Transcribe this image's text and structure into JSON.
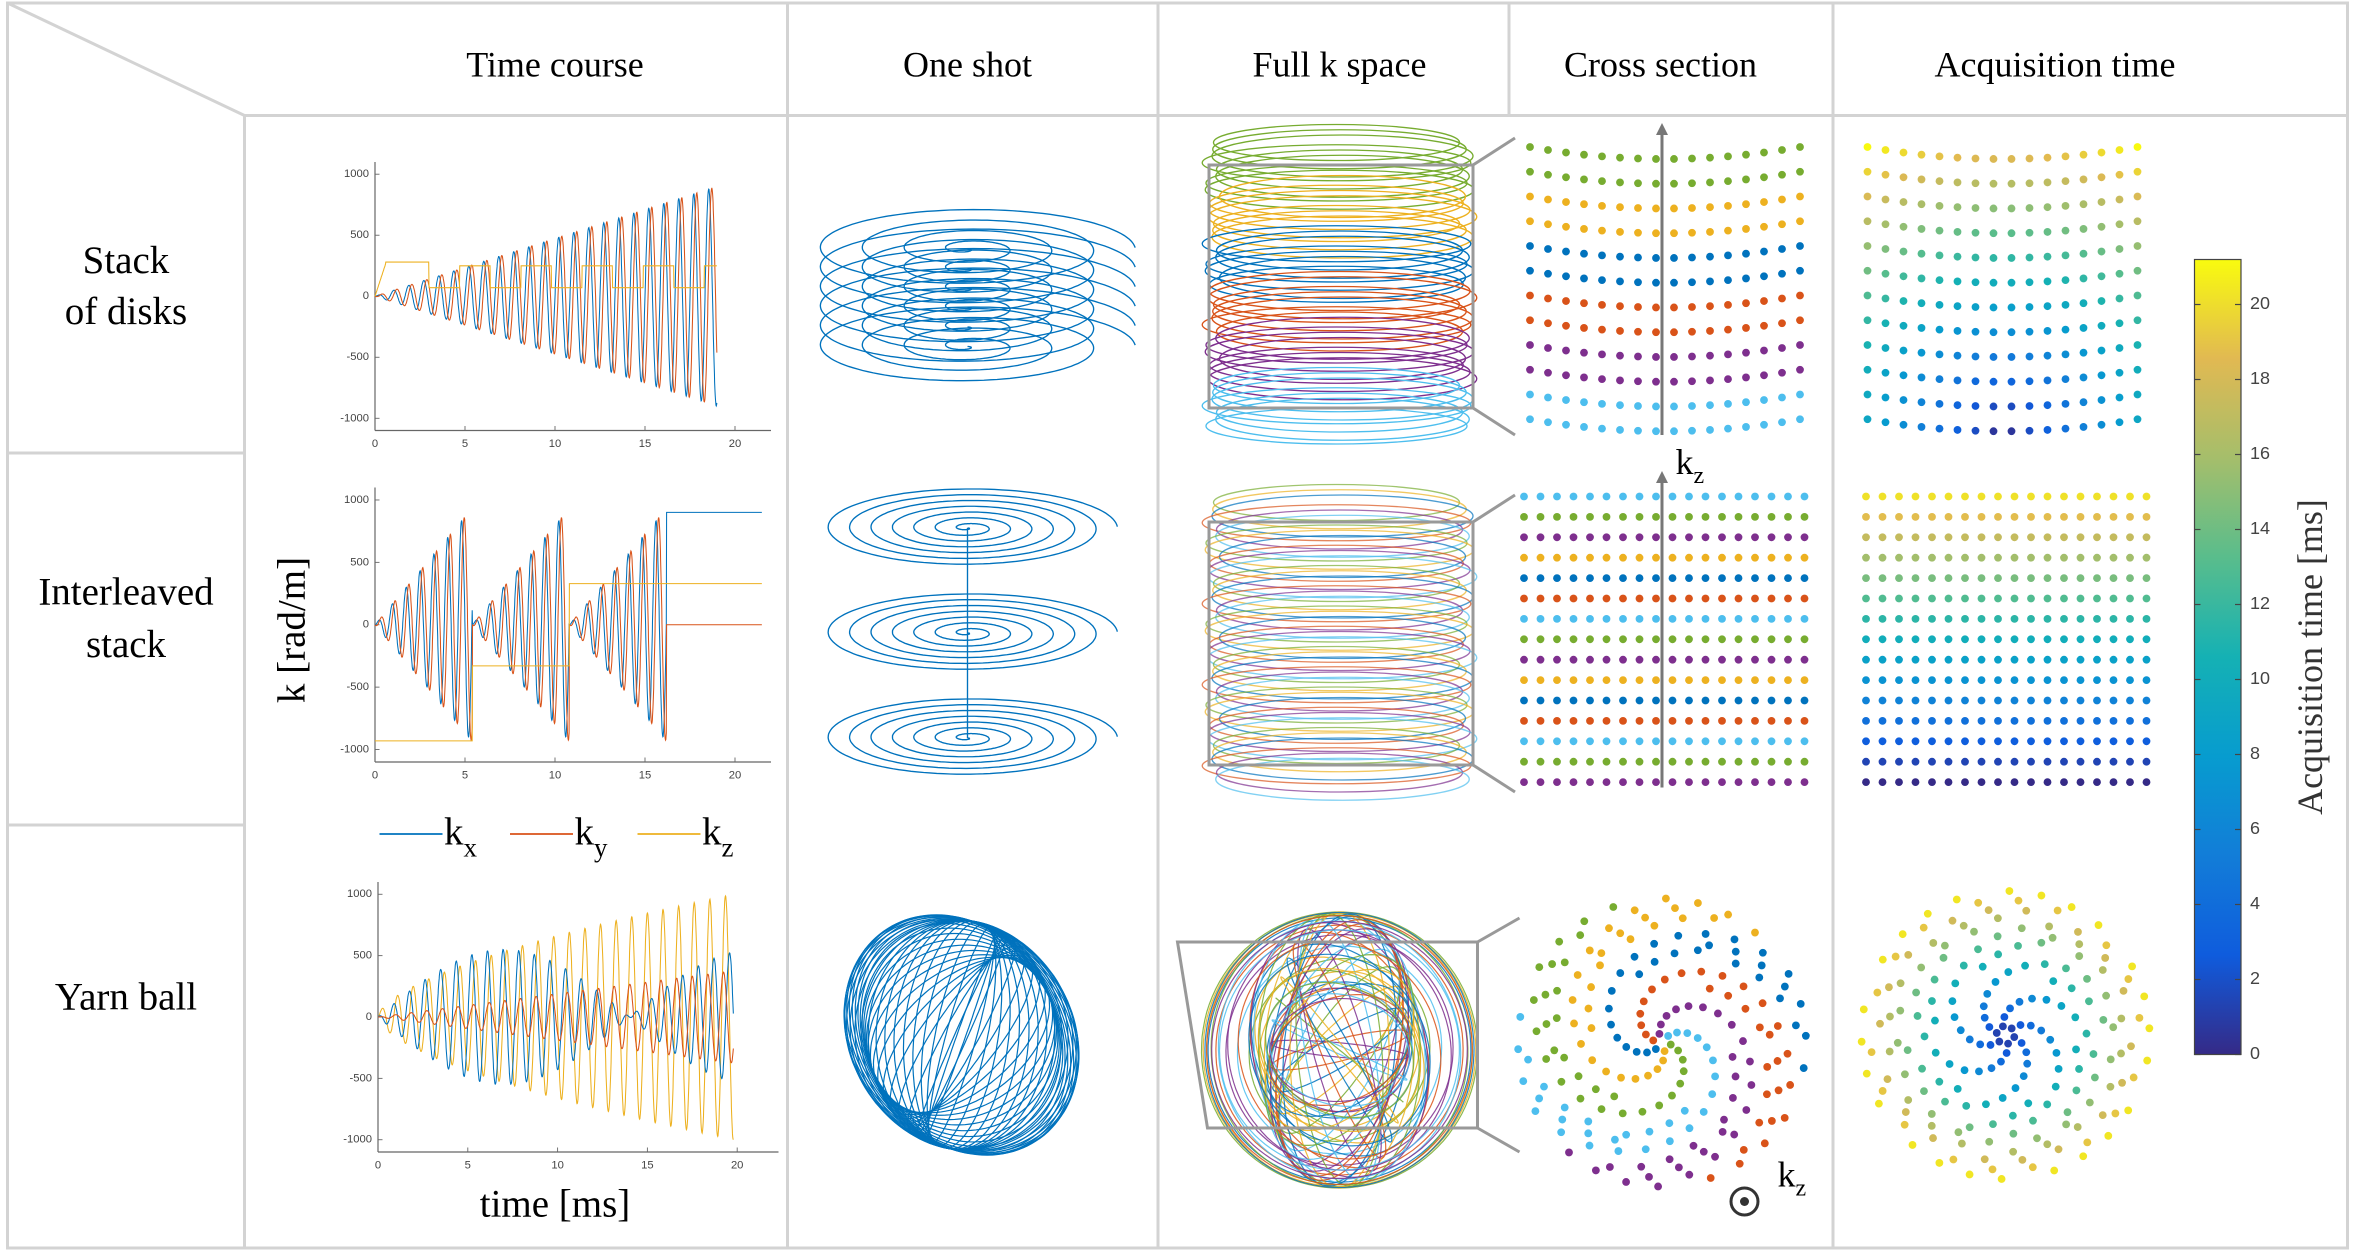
{
  "header": {
    "columns": [
      "Time course",
      "One shot",
      "Full k space",
      "Cross section",
      "Acquisition time"
    ]
  },
  "rows": [
    {
      "label": [
        "Stack",
        "of disks"
      ]
    },
    {
      "label": [
        "Interleaved",
        "stack"
      ]
    },
    {
      "label": [
        "Yarn ball"
      ]
    }
  ],
  "time_course": {
    "ylabel": "k  [rad/m]",
    "xlabel": "time [ms]",
    "legend": [
      {
        "name": "k",
        "sub": "x",
        "color": "#0072bd"
      },
      {
        "name": "k",
        "sub": "y",
        "color": "#d95319"
      },
      {
        "name": "k",
        "sub": "z",
        "color": "#edb120"
      }
    ],
    "charts": [
      {
        "xlim": [
          0,
          22
        ],
        "ylim": [
          -1100,
          1100
        ],
        "xticks": [
          0,
          5,
          10,
          15,
          20
        ],
        "yticks": [
          -1000,
          -500,
          0,
          500,
          1000
        ]
      },
      {
        "xlim": [
          0,
          22
        ],
        "ylim": [
          -1100,
          1100
        ],
        "xticks": [
          0,
          5,
          10,
          15,
          20
        ],
        "yticks": [
          -1000,
          -500,
          0,
          500,
          1000
        ]
      },
      {
        "xlim": [
          0,
          22.3
        ],
        "ylim": [
          -1100,
          1100
        ],
        "xticks": [
          0,
          5,
          10,
          15,
          20
        ],
        "yticks": [
          -1000,
          -500,
          0,
          500,
          1000
        ]
      }
    ]
  },
  "kz_labels": [
    {
      "name": "k",
      "sub": "z"
    },
    {
      "name": "k",
      "sub": "z"
    }
  ],
  "colorbar": {
    "label": "Acquisition time [ms]",
    "lim": [
      0,
      21.2
    ],
    "ticks": [
      0,
      2,
      4,
      6,
      8,
      10,
      12,
      14,
      16,
      18,
      20
    ]
  }
}
